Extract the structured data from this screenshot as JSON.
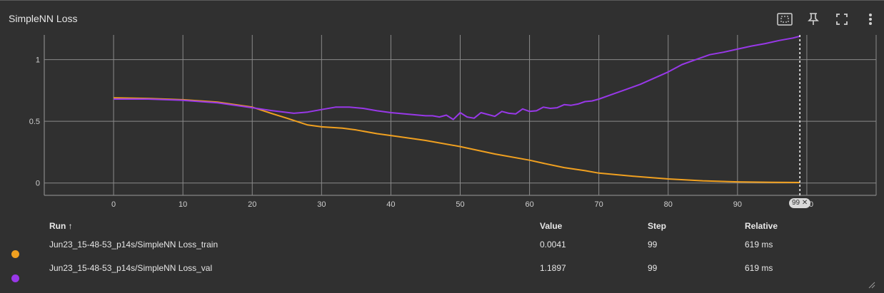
{
  "header": {
    "title": "SimpleNN Loss"
  },
  "toolbar": {
    "icons": [
      "fit-domain-icon",
      "pin-icon",
      "fullscreen-icon",
      "more-vert-icon"
    ]
  },
  "colors": {
    "train": "#f0a020",
    "val": "#9838e8",
    "background": "#303030",
    "grid": "#8a8a8a"
  },
  "chart_data": {
    "type": "line",
    "title": "",
    "xlabel": "",
    "ylabel": "",
    "xlim": [
      -10,
      110
    ],
    "ylim": [
      -0.1,
      1.2
    ],
    "x_ticks": [
      0,
      10,
      20,
      30,
      40,
      50,
      60,
      70,
      80,
      90,
      100
    ],
    "x_tick_labels": [
      "0",
      "10",
      "20",
      "30",
      "40",
      "50",
      "60",
      "70",
      "80",
      "90",
      "100"
    ],
    "y_ticks": [
      0,
      0.5,
      1
    ],
    "y_tick_labels": [
      "0",
      "0.5",
      "1"
    ],
    "grid": true,
    "hover_step": 99,
    "hover_step_label": "99",
    "series": [
      {
        "key": "train",
        "x": [
          0,
          5,
          10,
          15,
          20,
          23,
          25,
          28,
          30,
          33,
          35,
          38,
          40,
          45,
          50,
          55,
          60,
          62,
          65,
          68,
          70,
          75,
          80,
          85,
          90,
          95,
          99
        ],
        "values": [
          0.69,
          0.685,
          0.675,
          0.655,
          0.615,
          0.56,
          0.525,
          0.47,
          0.455,
          0.445,
          0.43,
          0.4,
          0.385,
          0.345,
          0.295,
          0.235,
          0.185,
          0.16,
          0.125,
          0.1,
          0.08,
          0.055,
          0.033,
          0.018,
          0.009,
          0.006,
          0.0041
        ]
      },
      {
        "key": "val",
        "x": [
          0,
          5,
          10,
          15,
          20,
          23,
          26,
          28,
          30,
          32,
          34,
          36,
          38,
          40,
          42,
          44,
          45,
          46,
          47,
          48,
          49,
          50,
          51,
          52,
          53,
          54,
          55,
          56,
          57,
          58,
          59,
          60,
          61,
          62,
          63,
          64,
          65,
          66,
          67,
          68,
          69,
          70,
          72,
          74,
          76,
          78,
          80,
          82,
          84,
          86,
          88,
          90,
          92,
          94,
          96,
          98,
          99
        ],
        "values": [
          0.68,
          0.68,
          0.67,
          0.65,
          0.61,
          0.585,
          0.565,
          0.575,
          0.595,
          0.615,
          0.615,
          0.605,
          0.585,
          0.57,
          0.56,
          0.55,
          0.545,
          0.545,
          0.535,
          0.55,
          0.515,
          0.57,
          0.535,
          0.525,
          0.57,
          0.555,
          0.54,
          0.58,
          0.565,
          0.56,
          0.6,
          0.58,
          0.585,
          0.615,
          0.605,
          0.61,
          0.635,
          0.63,
          0.64,
          0.66,
          0.665,
          0.68,
          0.72,
          0.76,
          0.8,
          0.85,
          0.9,
          0.96,
          1.0,
          1.04,
          1.06,
          1.085,
          1.11,
          1.13,
          1.155,
          1.175,
          1.1897
        ]
      }
    ]
  },
  "table": {
    "headers": {
      "run": "Run ↑",
      "value": "Value",
      "step": "Step",
      "relative": "Relative"
    },
    "rows": [
      {
        "key": "train",
        "run": "Jun23_15-48-53_p14s/SimpleNN Loss_train",
        "value": "0.0041",
        "step": "99",
        "relative": "619 ms"
      },
      {
        "key": "val",
        "run": "Jun23_15-48-53_p14s/SimpleNN Loss_val",
        "value": "1.1897",
        "step": "99",
        "relative": "619 ms"
      }
    ]
  }
}
